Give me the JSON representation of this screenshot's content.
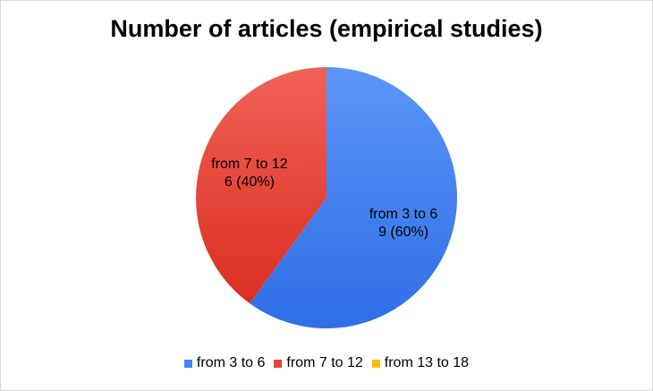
{
  "chart_data": {
    "type": "pie",
    "title": "Number of articles (empirical studies)",
    "categories": [
      "from 3 to 6",
      "from 7 to 12",
      "from 13 to 18"
    ],
    "values": [
      9,
      6,
      0
    ],
    "value_labels": [
      "9 (60%)",
      "6 (40%)",
      ""
    ],
    "colors": [
      "#4285f4",
      "#ea4335",
      "#fbbc04"
    ],
    "legend_position": "bottom"
  }
}
